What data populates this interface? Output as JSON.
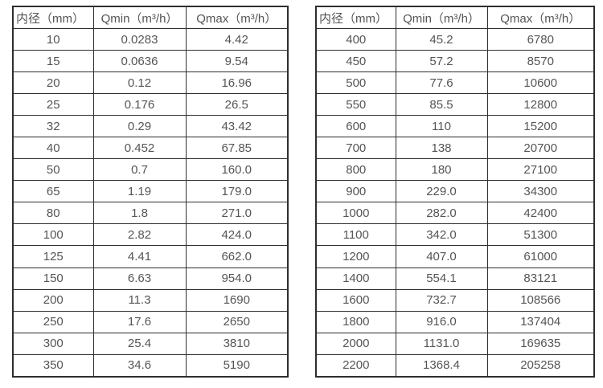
{
  "colors": {
    "border": "#2e2e2e",
    "text": "#555555",
    "background": "#ffffff"
  },
  "chart_data": [
    {
      "type": "table",
      "name": "flow-table-small-diameter",
      "headers": [
        "内径（mm）",
        "Qmin（m³/h）",
        "Qmax（m³/h）"
      ],
      "rows": [
        [
          "10",
          "0.0283",
          "4.42"
        ],
        [
          "15",
          "0.0636",
          "9.54"
        ],
        [
          "20",
          "0.12",
          "16.96"
        ],
        [
          "25",
          "0.176",
          "26.5"
        ],
        [
          "32",
          "0.29",
          "43.42"
        ],
        [
          "40",
          "0.452",
          "67.85"
        ],
        [
          "50",
          "0.7",
          "160.0"
        ],
        [
          "65",
          "1.19",
          "179.0"
        ],
        [
          "80",
          "1.8",
          "271.0"
        ],
        [
          "100",
          "2.82",
          "424.0"
        ],
        [
          "125",
          "4.41",
          "662.0"
        ],
        [
          "150",
          "6.63",
          "954.0"
        ],
        [
          "200",
          "11.3",
          "1690"
        ],
        [
          "250",
          "17.6",
          "2650"
        ],
        [
          "300",
          "25.4",
          "3810"
        ],
        [
          "350",
          "34.6",
          "5190"
        ]
      ]
    },
    {
      "type": "table",
      "name": "flow-table-large-diameter",
      "headers": [
        "内径（mm）",
        "Qmin（m³/h）",
        "Qmax（m³/h）"
      ],
      "rows": [
        [
          "400",
          "45.2",
          "6780"
        ],
        [
          "450",
          "57.2",
          "8570"
        ],
        [
          "500",
          "77.6",
          "10600"
        ],
        [
          "550",
          "85.5",
          "12800"
        ],
        [
          "600",
          "110",
          "15200"
        ],
        [
          "700",
          "138",
          "20700"
        ],
        [
          "800",
          "180",
          "27100"
        ],
        [
          "900",
          "229.0",
          "34300"
        ],
        [
          "1000",
          "282.0",
          "42400"
        ],
        [
          "1100",
          "342.0",
          "51300"
        ],
        [
          "1200",
          "407.0",
          "61000"
        ],
        [
          "1400",
          "554.1",
          "83121"
        ],
        [
          "1600",
          "732.7",
          "108566"
        ],
        [
          "1800",
          "916.0",
          "137404"
        ],
        [
          "2000",
          "1131.0",
          "169635"
        ],
        [
          "2200",
          "1368.4",
          "205258"
        ]
      ]
    }
  ]
}
